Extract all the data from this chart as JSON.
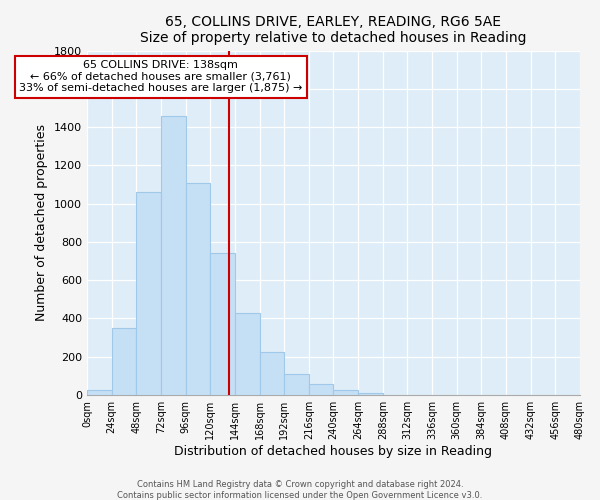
{
  "title": "65, COLLINS DRIVE, EARLEY, READING, RG6 5AE",
  "subtitle": "Size of property relative to detached houses in Reading",
  "xlabel": "Distribution of detached houses by size in Reading",
  "ylabel": "Number of detached properties",
  "bar_color": "#c5dff5",
  "bar_edge_color": "#a0c8e8",
  "bin_edges": [
    0,
    24,
    48,
    72,
    96,
    120,
    144,
    168,
    192,
    216,
    240,
    264,
    288,
    312,
    336,
    360,
    384,
    408,
    432,
    456,
    480
  ],
  "bar_heights": [
    25,
    350,
    1060,
    1460,
    1110,
    740,
    430,
    225,
    110,
    55,
    25,
    10,
    0,
    0,
    0,
    0,
    0,
    0,
    0,
    0
  ],
  "property_size": 138,
  "annotation_title": "65 COLLINS DRIVE: 138sqm",
  "annotation_line1": "← 66% of detached houses are smaller (3,761)",
  "annotation_line2": "33% of semi-detached houses are larger (1,875) →",
  "annotation_box_color": "#ffffff",
  "annotation_box_edge_color": "#cc0000",
  "vline_color": "#cc0000",
  "ylim": [
    0,
    1800
  ],
  "yticks": [
    0,
    200,
    400,
    600,
    800,
    1000,
    1200,
    1400,
    1600,
    1800
  ],
  "xtick_labels": [
    "0sqm",
    "24sqm",
    "48sqm",
    "72sqm",
    "96sqm",
    "120sqm",
    "144sqm",
    "168sqm",
    "192sqm",
    "216sqm",
    "240sqm",
    "264sqm",
    "288sqm",
    "312sqm",
    "336sqm",
    "360sqm",
    "384sqm",
    "408sqm",
    "432sqm",
    "456sqm",
    "480sqm"
  ],
  "footer_line1": "Contains HM Land Registry data © Crown copyright and database right 2024.",
  "footer_line2": "Contains public sector information licensed under the Open Government Licence v3.0.",
  "fig_bg_color": "#f5f5f5",
  "plot_bg_color": "#deedf8"
}
